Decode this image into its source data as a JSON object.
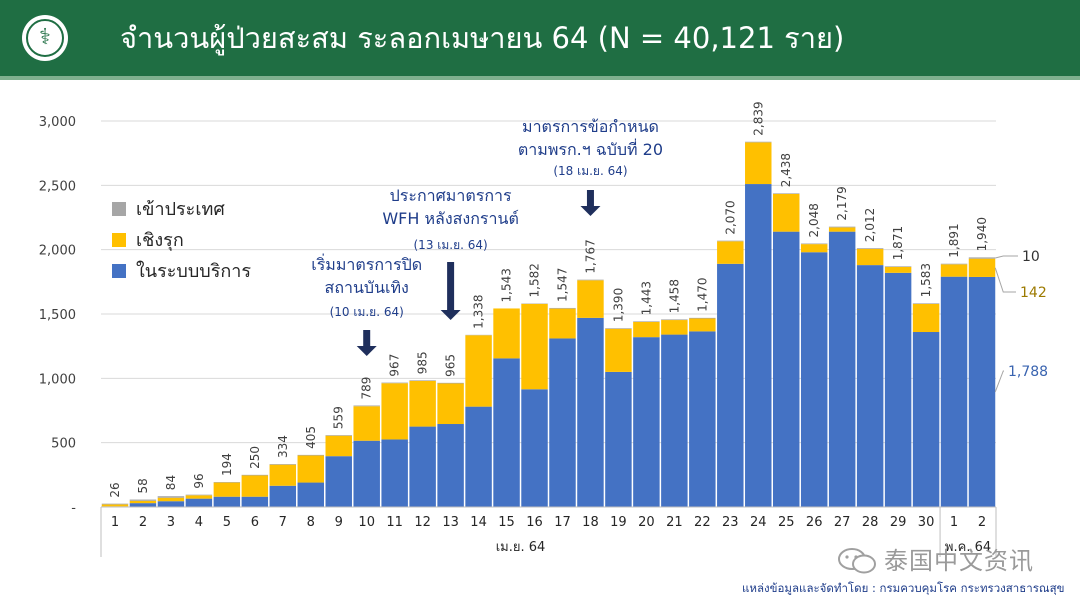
{
  "header": {
    "title": "จำนวนผู้ป่วยสะสม ระลอกเมษายน 64    (N = 40,121 ราย)"
  },
  "chart_data": {
    "type": "bar",
    "stacked": true,
    "categories": [
      "1",
      "2",
      "3",
      "4",
      "5",
      "6",
      "7",
      "8",
      "9",
      "10",
      "11",
      "12",
      "13",
      "14",
      "15",
      "16",
      "17",
      "18",
      "19",
      "20",
      "21",
      "22",
      "23",
      "24",
      "25",
      "26",
      "27",
      "28",
      "29",
      "30",
      "1",
      "2"
    ],
    "category_groups": [
      {
        "label": "เม.ย. 64",
        "from": 0,
        "to": 29
      },
      {
        "label": "พ.ค. 64",
        "from": 30,
        "to": 31
      }
    ],
    "series": [
      {
        "name": "ในระบบบริการ",
        "color": "#4472c4",
        "values": [
          5,
          30,
          45,
          65,
          80,
          80,
          165,
          190,
          395,
          515,
          525,
          625,
          645,
          780,
          1155,
          915,
          1310,
          1470,
          1050,
          1320,
          1340,
          1365,
          1890,
          2510,
          2140,
          1980,
          2140,
          1880,
          1820,
          1360,
          1790,
          1788
        ]
      },
      {
        "name": "เชิงรุก",
        "color": "#ffc000",
        "values": [
          15,
          18,
          27,
          26,
          110,
          165,
          164,
          210,
          159,
          268,
          437,
          355,
          315,
          555,
          388,
          664,
          232,
          292,
          335,
          118,
          113,
          100,
          175,
          324,
          293,
          63,
          33,
          126,
          46,
          218,
          96,
          142
        ]
      },
      {
        "name": "เข้าประเทศ",
        "color": "#a6a6a6",
        "values": [
          6,
          10,
          12,
          5,
          4,
          5,
          5,
          5,
          5,
          6,
          5,
          5,
          5,
          3,
          0,
          3,
          5,
          5,
          5,
          5,
          5,
          5,
          5,
          5,
          5,
          5,
          6,
          6,
          5,
          5,
          5,
          10
        ]
      }
    ],
    "totals": [
      "26",
      "58",
      "84",
      "96",
      "194",
      "250",
      "334",
      "405",
      "559",
      "789",
      "967",
      "985",
      "965",
      "1,338",
      "1,543",
      "1,582",
      "1,547",
      "1,767",
      "1,390",
      "1,443",
      "1,458",
      "1,470",
      "2,070",
      "2,839",
      "2,438",
      "2,048",
      "2,179",
      "2,012",
      "1,871",
      "1,583",
      "1,891",
      "1,940"
    ],
    "ylim": [
      0,
      3000
    ],
    "yticks": [
      {
        "value": 0,
        "label": "-"
      },
      {
        "value": 500,
        "label": "500"
      },
      {
        "value": 1000,
        "label": "1,000"
      },
      {
        "value": 1500,
        "label": "1,500"
      },
      {
        "value": 2000,
        "label": "2,000"
      },
      {
        "value": 2500,
        "label": "2,500"
      },
      {
        "value": 3000,
        "label": "3,000"
      }
    ],
    "grid": true,
    "legend_position": "top-left",
    "legend": [
      {
        "label": "เข้าประเทศ",
        "color": "#a6a6a6"
      },
      {
        "label": "เชิงรุก",
        "color": "#ffc000"
      },
      {
        "label": "ในระบบบริการ",
        "color": "#4472c4"
      }
    ],
    "last_bar_callouts": [
      {
        "label": "10",
        "series": "เข้าประเทศ",
        "color": "#333333"
      },
      {
        "label": "142",
        "series": "เชิงรุก",
        "color": "#9c7a00"
      },
      {
        "label": "1,788",
        "series": "ในระบบบริการ",
        "color": "#3a64b0"
      }
    ],
    "annotations": [
      {
        "index": 9,
        "lines": [
          "เริ่มมาตรการปิด",
          "สถานบันเทิง"
        ],
        "date": "(10 เม.ย. 64)"
      },
      {
        "index": 12,
        "lines": [
          "ประกาศมาตรการ",
          "WFH หลังสงกรานต์"
        ],
        "date": "(13 เม.ย. 64)"
      },
      {
        "index": 17,
        "lines": [
          "มาตรการข้อกำหนด",
          "ตามพรก.ฯ ฉบับที่ 20"
        ],
        "date": "(18 เม.ย. 64)"
      }
    ]
  },
  "footer": {
    "watermark": "泰国中文资讯",
    "source": "แหล่งข้อมูลและจัดทำโดย : กรมควบคุมโรค กระทรวงสาธารณสุข"
  },
  "colors": {
    "header_bg": "#1f6e43",
    "annotation_text": "#1f3d8a",
    "arrow": "#1f2f5c"
  }
}
